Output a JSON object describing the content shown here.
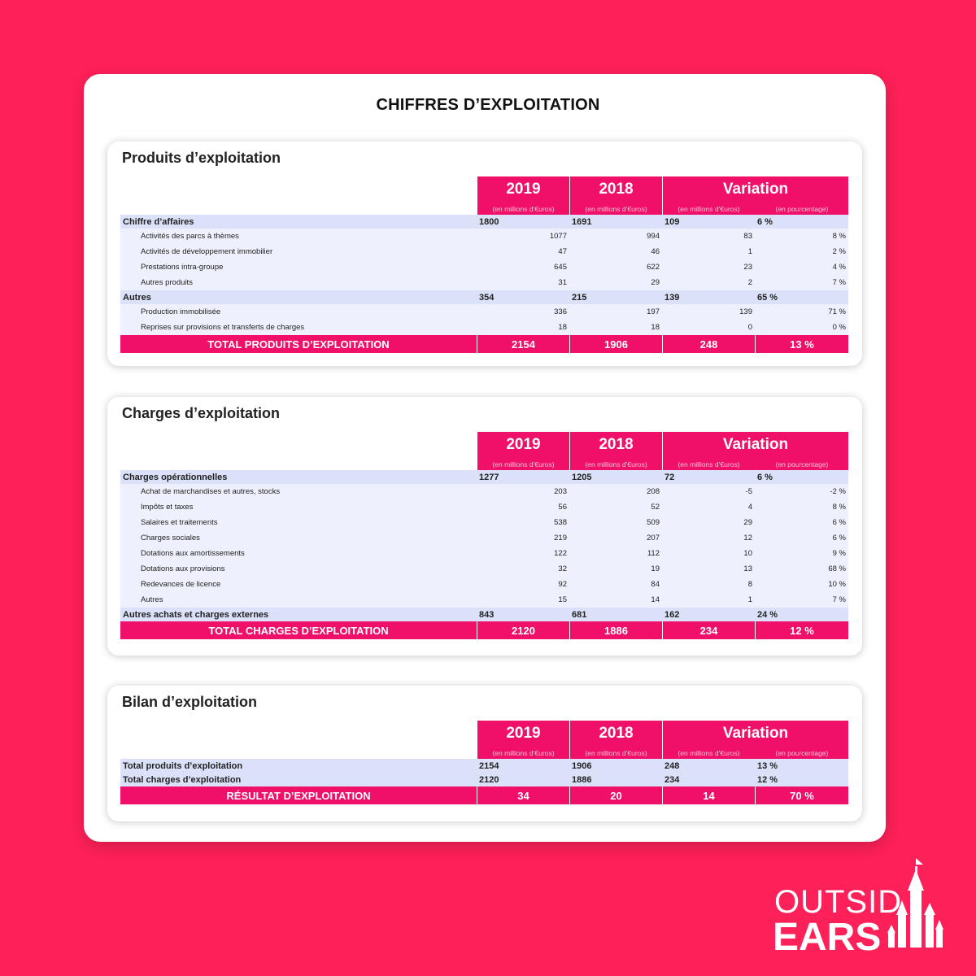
{
  "main_title": "CHIFFRES D’EXPLOITATION",
  "brand": {
    "line1": "OUTSID",
    "line2": "EARS"
  },
  "colors": {
    "background": "#fe2058",
    "accent": "#f0106a",
    "row_main": "#dbe1f9",
    "row_sub": "#eef0fd"
  },
  "header": {
    "year1": "2019",
    "year2": "2018",
    "variation": "Variation",
    "sub1": "(en millions d’€uros)",
    "sub2": "(en millions d’€uros)",
    "sub3": "(en millions d’€uros)",
    "sub4": "(en pourcentage)"
  },
  "sections": [
    {
      "title": "Produits d’exploitation",
      "rows": [
        {
          "type": "main",
          "label": "Chiffre d’affaires",
          "v2019": "1800",
          "v2018": "1691",
          "var": "109",
          "pct": "6 %"
        },
        {
          "type": "sub",
          "label": "Activités des parcs à thèmes",
          "v2019": "1077",
          "v2018": "994",
          "var": "83",
          "pct": "8 %"
        },
        {
          "type": "sub",
          "label": "Activités de développement immobilier",
          "v2019": "47",
          "v2018": "46",
          "var": "1",
          "pct": "2 %"
        },
        {
          "type": "sub",
          "label": "Prestations intra-groupe",
          "v2019": "645",
          "v2018": "622",
          "var": "23",
          "pct": "4 %"
        },
        {
          "type": "sub",
          "label": "Autres produits",
          "v2019": "31",
          "v2018": "29",
          "var": "2",
          "pct": "7 %"
        },
        {
          "type": "main",
          "label": "Autres",
          "v2019": "354",
          "v2018": "215",
          "var": "139",
          "pct": "65 %"
        },
        {
          "type": "sub",
          "label": "Production immobilisée",
          "v2019": "336",
          "v2018": "197",
          "var": "139",
          "pct": "71 %"
        },
        {
          "type": "sub",
          "label": "Reprises sur provisions et transferts de charges",
          "v2019": "18",
          "v2018": "18",
          "var": "0",
          "pct": "0 %"
        },
        {
          "type": "total",
          "label": "TOTAL PRODUITS D’EXPLOITATION",
          "v2019": "2154",
          "v2018": "1906",
          "var": "248",
          "pct": "13 %"
        }
      ]
    },
    {
      "title": "Charges d’exploitation",
      "rows": [
        {
          "type": "main",
          "label": "Charges opérationnelles",
          "v2019": "1277",
          "v2018": "1205",
          "var": "72",
          "pct": "6 %"
        },
        {
          "type": "sub",
          "label": "Achat de marchandises et autres, stocks",
          "v2019": "203",
          "v2018": "208",
          "var": "-5",
          "pct": "-2 %"
        },
        {
          "type": "sub",
          "label": "Impôts et taxes",
          "v2019": "56",
          "v2018": "52",
          "var": "4",
          "pct": "8 %"
        },
        {
          "type": "sub",
          "label": "Salaires et traitements",
          "v2019": "538",
          "v2018": "509",
          "var": "29",
          "pct": "6 %"
        },
        {
          "type": "sub",
          "label": "Charges sociales",
          "v2019": "219",
          "v2018": "207",
          "var": "12",
          "pct": "6 %"
        },
        {
          "type": "sub",
          "label": "Dotations aux amortissements",
          "v2019": "122",
          "v2018": "112",
          "var": "10",
          "pct": "9 %"
        },
        {
          "type": "sub",
          "label": "Dotations aux provisions",
          "v2019": "32",
          "v2018": "19",
          "var": "13",
          "pct": "68 %"
        },
        {
          "type": "sub",
          "label": "Redevances de licence",
          "v2019": "92",
          "v2018": "84",
          "var": "8",
          "pct": "10 %"
        },
        {
          "type": "sub",
          "label": "Autres",
          "v2019": "15",
          "v2018": "14",
          "var": "1",
          "pct": "7 %"
        },
        {
          "type": "main",
          "label": "Autres achats et charges externes",
          "v2019": "843",
          "v2018": "681",
          "var": "162",
          "pct": "24 %"
        },
        {
          "type": "total",
          "label": "TOTAL CHARGES D’EXPLOITATION",
          "v2019": "2120",
          "v2018": "1886",
          "var": "234",
          "pct": "12 %"
        }
      ]
    },
    {
      "title": "Bilan d’exploitation",
      "rows": [
        {
          "type": "main",
          "label": "Total produits d’exploitation",
          "v2019": "2154",
          "v2018": "1906",
          "var": "248",
          "pct": "13 %"
        },
        {
          "type": "main",
          "label": "Total charges d’exploitation",
          "v2019": "2120",
          "v2018": "1886",
          "var": "234",
          "pct": "12 %"
        },
        {
          "type": "total",
          "label": "RÉSULTAT D’EXPLOITATION",
          "v2019": "34",
          "v2018": "20",
          "var": "14",
          "pct": "70 %"
        }
      ]
    }
  ]
}
